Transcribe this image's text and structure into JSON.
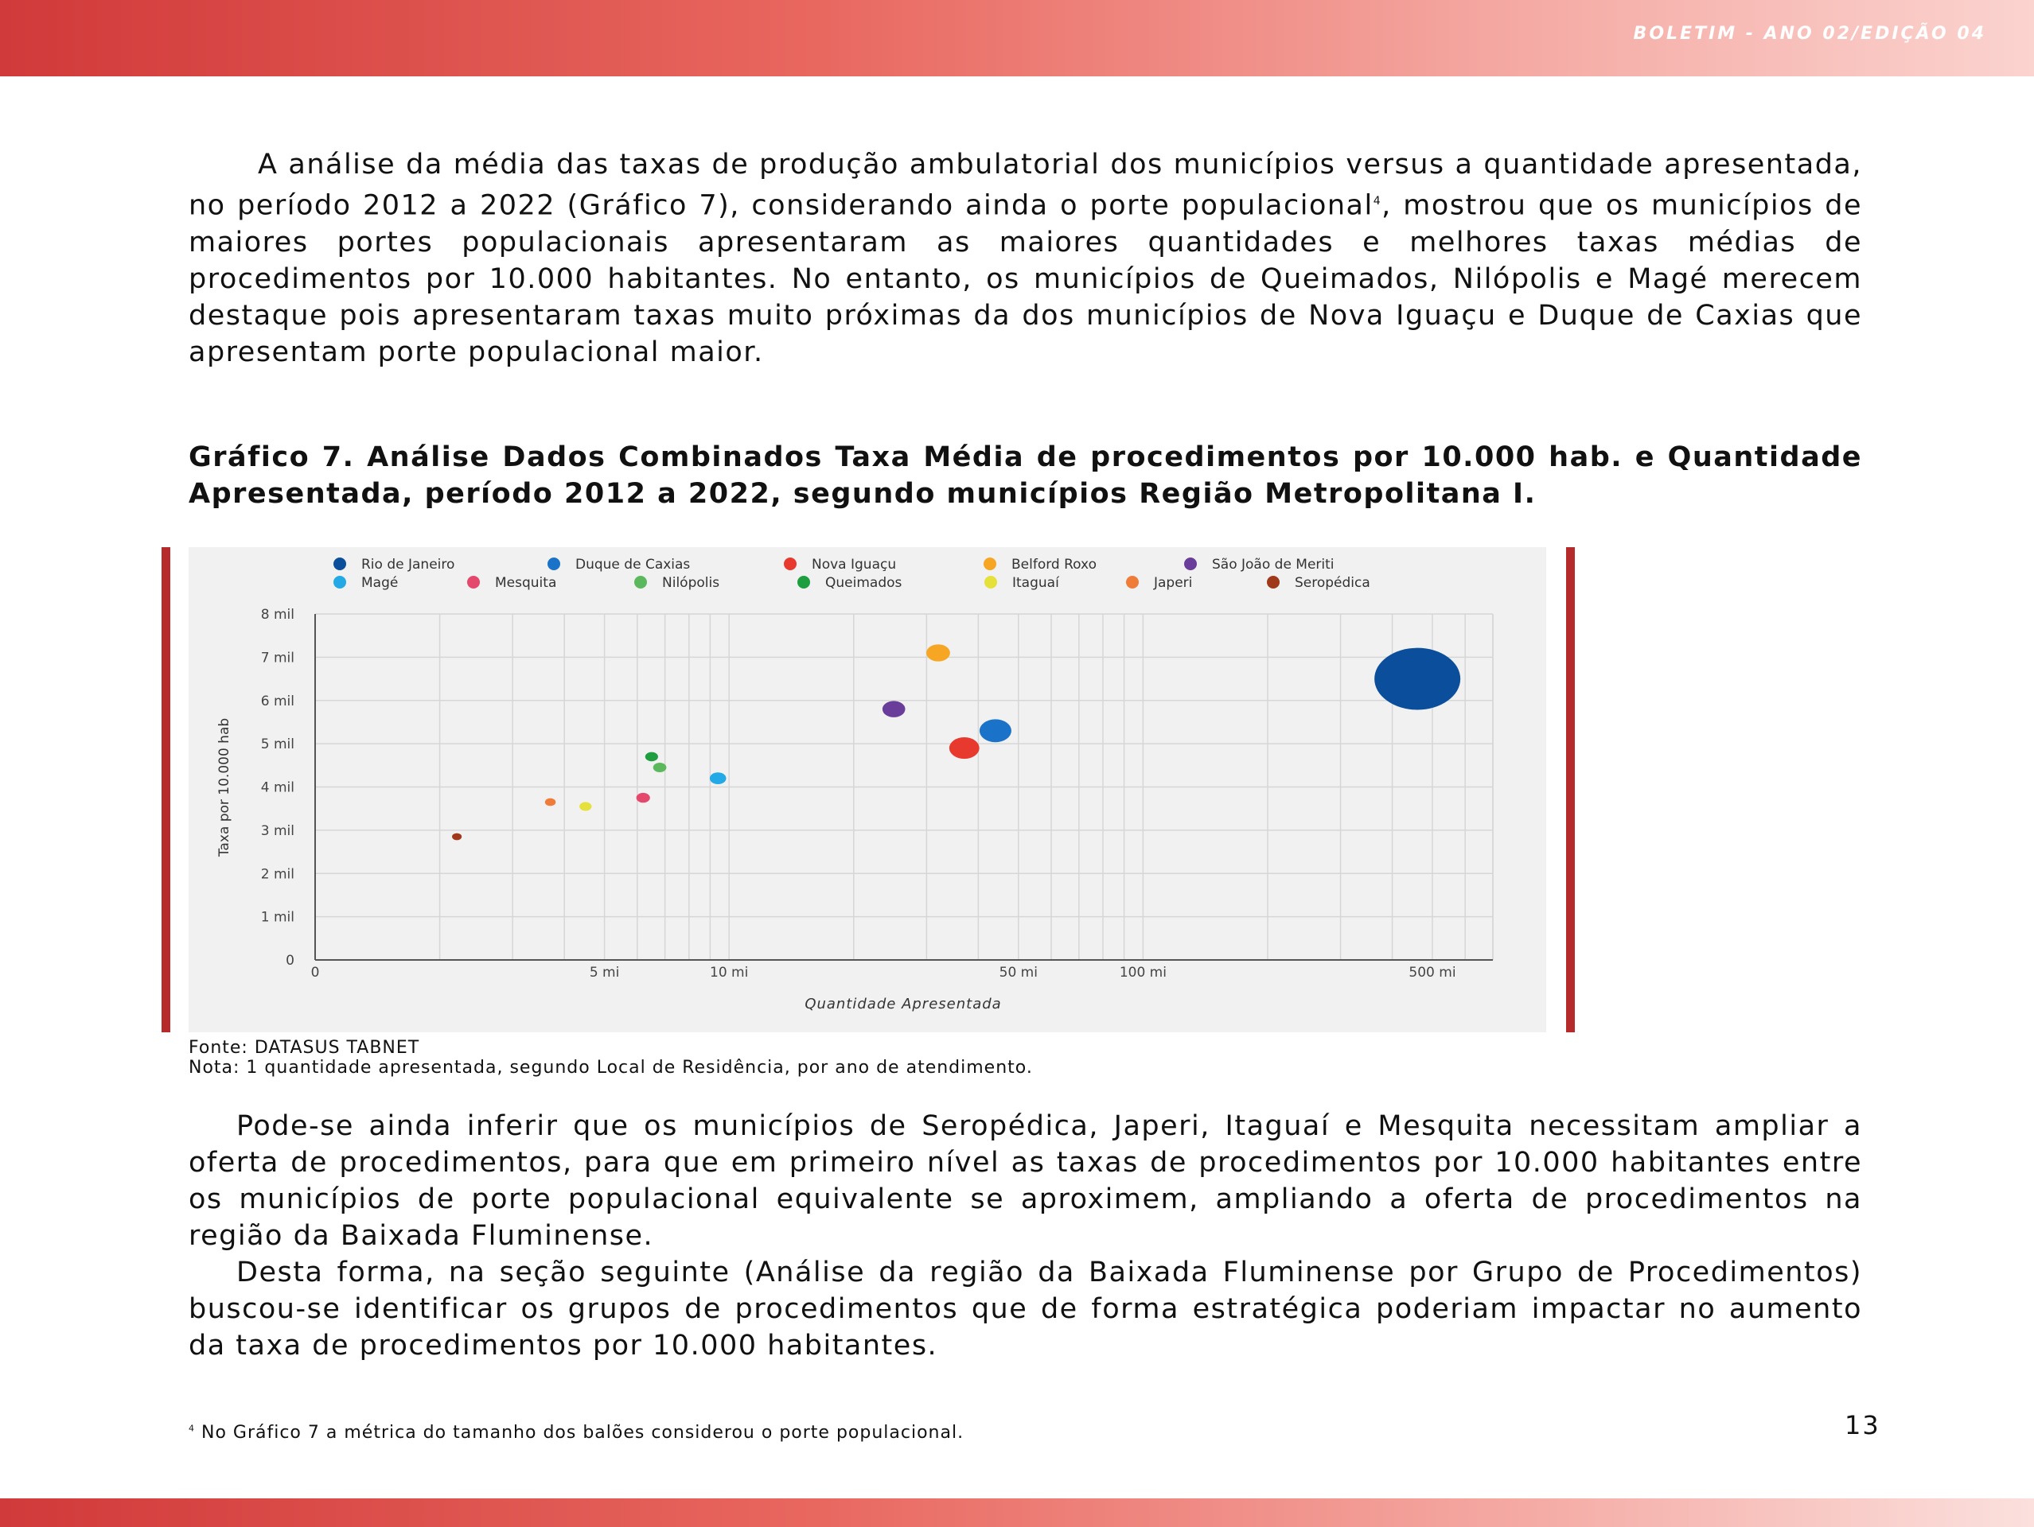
{
  "header": {
    "title": "BOLETIM - ANO 02/EDIÇÃO 04"
  },
  "body": {
    "paragraph1_before_sup": "A análise da média das taxas de produção ambulatorial dos municípios versus a quantidade apresentada, no período 2012 a 2022 (Gráfico 7), considerando ainda o porte populacional",
    "paragraph1_sup": "4",
    "paragraph1_after_sup": ", mostrou que os municípios de maiores portes populacionais apresentaram as maiores quantidades e melhores taxas médias de procedimentos por 10.000 habitantes. No entanto, os municípios de Queimados, Nilópolis e Magé merecem destaque pois apresentaram taxas muito próximas da dos municípios de Nova Iguaçu e Duque de Caxias que apresentam porte populacional maior.",
    "figure_caption": "Gráfico 7. Análise Dados Combinados Taxa Média de procedimentos por 10.000 hab. e Quantidade Apresentada, período 2012 a 2022, segundo municípios Região Metropolitana I.",
    "source": "Fonte: DATASUS TABNET",
    "note": "Nota: 1 quantidade apresentada, segundo Local de Residência, por ano de atendimento.",
    "paragraph2": "Pode-se ainda inferir que os municípios de Seropédica, Japeri, Itaguaí e Mesquita necessitam ampliar a oferta de procedimentos, para que em primeiro nível as taxas de procedimentos por 10.000 habitantes entre os municípios de porte populacional equivalente se aproximem, ampliando a oferta de procedimentos na região da Baixada Fluminense.",
    "paragraph3": "Desta forma, na seção seguinte (Análise da região da Baixada Fluminense por Grupo de Procedimentos) buscou-se identificar os grupos de procedimentos que de forma estratégica poderiam impactar no aumento da taxa de procedimentos por 10.000 habitantes.",
    "footnote_marker": "4",
    "footnote_text": " No Gráfico 7 a métrica do tamanho dos balões considerou o porte populacional.",
    "page_number": "13"
  },
  "chart_data": {
    "type": "scatter",
    "subtype": "bubble",
    "xlabel": "Quantidade Apresentada",
    "ylabel": "Taxa por 10.000 hab",
    "x_scale": "log",
    "x_ticks": [
      {
        "value": 0,
        "label": "0"
      },
      {
        "value": 5000000,
        "label": "5 mi"
      },
      {
        "value": 10000000,
        "label": "10 mi"
      },
      {
        "value": 50000000,
        "label": "50 mi"
      },
      {
        "value": 100000000,
        "label": "100 mi"
      },
      {
        "value": 500000000,
        "label": "500 mi"
      }
    ],
    "y_ticks": [
      {
        "value": 0,
        "label": "0"
      },
      {
        "value": 1000,
        "label": "1 mil"
      },
      {
        "value": 2000,
        "label": "2 mil"
      },
      {
        "value": 3000,
        "label": "3 mil"
      },
      {
        "value": 4000,
        "label": "4 mil"
      },
      {
        "value": 5000,
        "label": "5 mil"
      },
      {
        "value": 6000,
        "label": "6 mil"
      },
      {
        "value": 7000,
        "label": "7 mil"
      },
      {
        "value": 8000,
        "label": "8 mil"
      }
    ],
    "ylim": [
      0,
      8000
    ],
    "grid": true,
    "legend_position": "top",
    "series": [
      {
        "name": "Rio de Janeiro",
        "color": "#0b4f9c",
        "x": 460000000,
        "y": 6500,
        "size": 6700000
      },
      {
        "name": "Duque de Caxias",
        "color": "#1a73c8",
        "x": 44000000,
        "y": 5300,
        "size": 920000
      },
      {
        "name": "Nova Iguaçu",
        "color": "#e8392e",
        "x": 37000000,
        "y": 4900,
        "size": 820000
      },
      {
        "name": "Belford Roxo",
        "color": "#f6a623",
        "x": 32000000,
        "y": 7100,
        "size": 510000
      },
      {
        "name": "São João de Meriti",
        "color": "#6a3d9a",
        "x": 25000000,
        "y": 5800,
        "size": 470000
      },
      {
        "name": "Magé",
        "color": "#22a9e6",
        "x": 9400000,
        "y": 4200,
        "size": 245000
      },
      {
        "name": "Mesquita",
        "color": "#e5486d",
        "x": 6200000,
        "y": 3750,
        "size": 170000
      },
      {
        "name": "Nilópolis",
        "color": "#5cb85c",
        "x": 6800000,
        "y": 4450,
        "size": 160000
      },
      {
        "name": "Queimados",
        "color": "#1e9e3f",
        "x": 6500000,
        "y": 4700,
        "size": 150000
      },
      {
        "name": "Itaguaí",
        "color": "#e6e03a",
        "x": 4500000,
        "y": 3550,
        "size": 135000
      },
      {
        "name": "Japeri",
        "color": "#f07c3a",
        "x": 3700000,
        "y": 3650,
        "size": 105000
      },
      {
        "name": "Seropédica",
        "color": "#a0381a",
        "x": 2200000,
        "y": 2850,
        "size": 85000
      }
    ]
  }
}
